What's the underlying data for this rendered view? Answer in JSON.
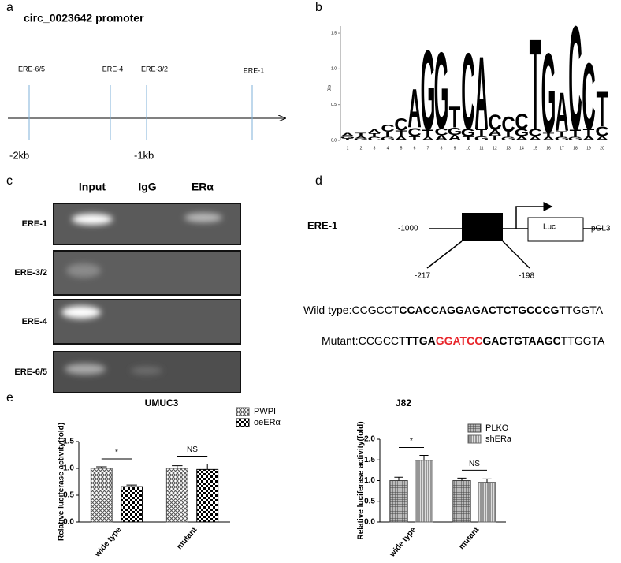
{
  "panel_labels": [
    "a",
    "b",
    "c",
    "d",
    "e"
  ],
  "promoter": {
    "title": "circ_0023642 promoter",
    "sites": [
      "ERE-6/5",
      "ERE-4",
      "ERE-3/2",
      "ERE-1"
    ],
    "scale_labels": [
      "-2kb",
      "-1kb"
    ]
  },
  "logo": {
    "ylabel": "Bits",
    "ylim": [
      0,
      1.6
    ],
    "yticks": [
      {
        "value": 0,
        "label": "0.0"
      },
      0.5,
      {
        "value": 1,
        "label": "1.0"
      },
      1.5
    ],
    "xticks": [
      1,
      2,
      3,
      4,
      5,
      6,
      7,
      8,
      9,
      10,
      11,
      12,
      13,
      14,
      15,
      16,
      17,
      18,
      19,
      20
    ],
    "colors": {
      "A": "#1f9a48",
      "C": "#2a5fa8",
      "G": "#f5a623",
      "T": "#d9262c"
    },
    "positions": [
      [
        {
          "base": "T",
          "bits": 0.03
        },
        {
          "base": "G",
          "bits": 0.03
        },
        {
          "base": "A",
          "bits": 0.04
        }
      ],
      [
        {
          "base": "G",
          "bits": 0.03
        },
        {
          "base": "A",
          "bits": 0.03
        },
        {
          "base": "T",
          "bits": 0.04
        }
      ],
      [
        {
          "base": "C",
          "bits": 0.05
        },
        {
          "base": "T",
          "bits": 0.05
        },
        {
          "base": "A",
          "bits": 0.06
        }
      ],
      [
        {
          "base": "G",
          "bits": 0.05
        },
        {
          "base": "T",
          "bits": 0.07
        },
        {
          "base": "C",
          "bits": 0.1
        }
      ],
      [
        {
          "base": "A",
          "bits": 0.06
        },
        {
          "base": "T",
          "bits": 0.08
        },
        {
          "base": "C",
          "bits": 0.18
        }
      ],
      [
        {
          "base": "T",
          "bits": 0.06
        },
        {
          "base": "C",
          "bits": 0.12
        },
        {
          "base": "A",
          "bits": 0.55
        }
      ],
      [
        {
          "base": "A",
          "bits": 0.05
        },
        {
          "base": "T",
          "bits": 0.1
        },
        {
          "base": "G",
          "bits": 1.15
        }
      ],
      [
        {
          "base": "A",
          "bits": 0.07
        },
        {
          "base": "C",
          "bits": 0.1
        },
        {
          "base": "G",
          "bits": 1.1
        }
      ],
      [
        {
          "base": "A",
          "bits": 0.08
        },
        {
          "base": "G",
          "bits": 0.1
        },
        {
          "base": "T",
          "bits": 0.3
        }
      ],
      [
        {
          "base": "T",
          "bits": 0.06
        },
        {
          "base": "G",
          "bits": 0.1
        },
        {
          "base": "C",
          "bits": 1.1
        }
      ],
      [
        {
          "base": "G",
          "bits": 0.06
        },
        {
          "base": "T",
          "bits": 0.1
        },
        {
          "base": "A",
          "bits": 1.05
        }
      ],
      [
        {
          "base": "T",
          "bits": 0.07
        },
        {
          "base": "A",
          "bits": 0.08
        },
        {
          "base": "C",
          "bits": 0.22
        }
      ],
      [
        {
          "base": "G",
          "bits": 0.05
        },
        {
          "base": "T",
          "bits": 0.07
        },
        {
          "base": "C",
          "bits": 0.22
        }
      ],
      [
        {
          "base": "A",
          "bits": 0.06
        },
        {
          "base": "G",
          "bits": 0.1
        },
        {
          "base": "C",
          "bits": 0.22
        }
      ],
      [
        {
          "base": "A",
          "bits": 0.06
        },
        {
          "base": "C",
          "bits": 0.1
        },
        {
          "base": "T",
          "bits": 1.3
        }
      ],
      [
        {
          "base": "A",
          "bits": 0.05
        },
        {
          "base": "T",
          "bits": 0.06
        },
        {
          "base": "G",
          "bits": 1.15
        }
      ],
      [
        {
          "base": "G",
          "bits": 0.05
        },
        {
          "base": "T",
          "bits": 0.08
        },
        {
          "base": "A",
          "bits": 0.55
        }
      ],
      [
        {
          "base": "G",
          "bits": 0.05
        },
        {
          "base": "T",
          "bits": 0.1
        },
        {
          "base": "C",
          "bits": 1.5
        }
      ],
      [
        {
          "base": "A",
          "bits": 0.06
        },
        {
          "base": "T",
          "bits": 0.1
        },
        {
          "base": "C",
          "bits": 0.95
        }
      ],
      [
        {
          "base": "A",
          "bits": 0.06
        },
        {
          "base": "C",
          "bits": 0.14
        },
        {
          "base": "T",
          "bits": 0.5
        }
      ]
    ]
  },
  "gel": {
    "columns": [
      "Input",
      "IgG",
      "ERα"
    ],
    "rows": [
      "ERE-1",
      "ERE-3/2",
      "ERE-4",
      "ERE-6/5"
    ]
  },
  "construct": {
    "name": "ERE-1",
    "start": "-1000",
    "reporter": "Luc",
    "vector": "pGL3",
    "region": [
      "-217",
      "-198"
    ],
    "wild_type": {
      "label": "Wild type:",
      "segments": [
        {
          "text": "CCGCCT",
          "bold": false,
          "color": "#000000"
        },
        {
          "text": "CCACCAGGAGACTCTGCCCG",
          "bold": true,
          "color": "#000000"
        },
        {
          "text": "TTGGTA",
          "bold": false,
          "color": "#000000"
        }
      ]
    },
    "mutant": {
      "label": "Mutant:",
      "segments": [
        {
          "text": "CCGCCT",
          "bold": false,
          "color": "#000000"
        },
        {
          "text": "TTGA",
          "bold": true,
          "color": "#000000"
        },
        {
          "text": "GGATCC",
          "bold": true,
          "color": "#e8262b"
        },
        {
          "text": "GACTGTAAGC",
          "bold": true,
          "color": "#000000"
        },
        {
          "text": "TTGGTA",
          "bold": false,
          "color": "#000000"
        }
      ]
    }
  },
  "chart_data": [
    {
      "type": "bar",
      "title": "UMUC3",
      "ylabel": "Relative luciferase activity(fold)",
      "categories": [
        "wide type",
        "mutant"
      ],
      "series": [
        {
          "name": "PWPI",
          "color": "#555555",
          "pattern": "crosshatch",
          "values": [
            1.0,
            1.0
          ],
          "errors": [
            0.03,
            0.05
          ]
        },
        {
          "name": "oeERα",
          "color": "#000000",
          "pattern": "checker",
          "values": [
            0.66,
            0.98
          ],
          "errors": [
            0.03,
            0.1
          ]
        }
      ],
      "annotations": [
        "*",
        "NS"
      ],
      "ylim": [
        0,
        1.5
      ],
      "yticks": [
        {
          "value": 0,
          "label": "0.0"
        },
        0.5,
        {
          "value": 1,
          "label": "1.0"
        },
        1.5
      ]
    },
    {
      "type": "bar",
      "title": "J82",
      "ylabel": "Relative luciferase activity(fold)",
      "categories": [
        "wide type",
        "mutant"
      ],
      "series": [
        {
          "name": "PLKO",
          "color": "#444444",
          "pattern": "grid",
          "values": [
            1.0,
            1.0
          ],
          "errors": [
            0.08,
            0.06
          ]
        },
        {
          "name": "shERa",
          "color": "#666666",
          "pattern": "stripe",
          "values": [
            1.49,
            0.96
          ],
          "errors": [
            0.12,
            0.08
          ]
        }
      ],
      "annotations": [
        "*",
        "NS"
      ],
      "ylim": [
        0,
        2.0
      ],
      "yticks": [
        {
          "value": 0,
          "label": "0.0"
        },
        0.5,
        {
          "value": 1,
          "label": "1.0"
        },
        1.5,
        {
          "value": 2,
          "label": "2.0"
        }
      ]
    }
  ]
}
